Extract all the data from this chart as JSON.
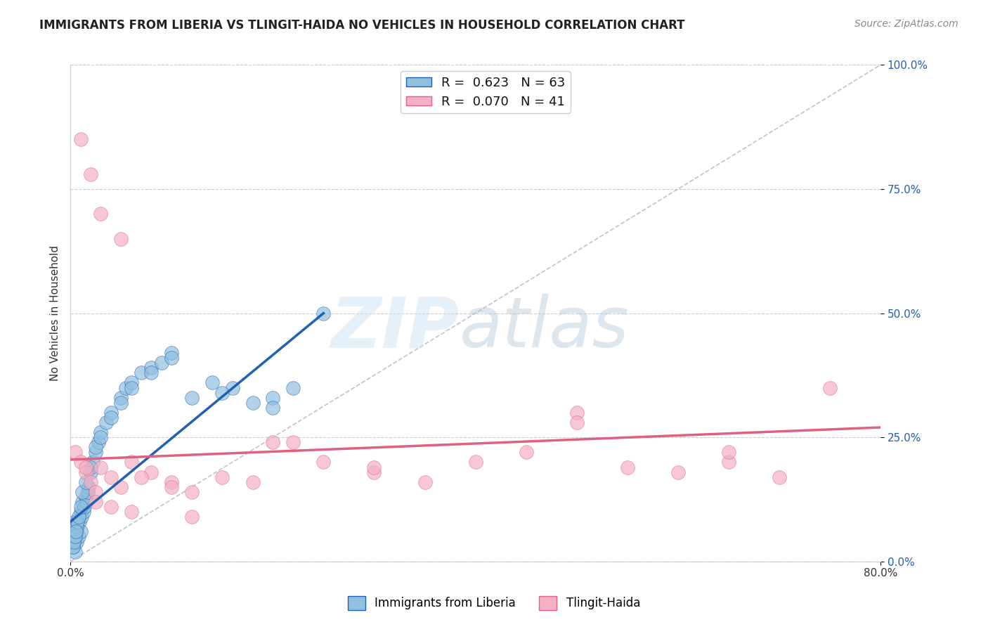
{
  "title": "IMMIGRANTS FROM LIBERIA VS TLINGIT-HAIDA NO VEHICLES IN HOUSEHOLD CORRELATION CHART",
  "source": "Source: ZipAtlas.com",
  "ylabel": "No Vehicles in Household",
  "xlim": [
    0.0,
    80.0
  ],
  "ylim": [
    0.0,
    100.0
  ],
  "yticks": [
    0.0,
    25.0,
    50.0,
    75.0,
    100.0
  ],
  "xticks": [
    0.0,
    80.0
  ],
  "legend_labels": [
    "Immigrants from Liberia",
    "Tlingit-Haida"
  ],
  "r_values": [
    0.623,
    0.07
  ],
  "n_values": [
    63,
    41
  ],
  "blue_color": "#90bfe0",
  "pink_color": "#f4b0c5",
  "blue_line_color": "#2060b0",
  "pink_line_color": "#e06080",
  "blue_scatter_x": [
    0.2,
    0.3,
    0.4,
    0.5,
    0.5,
    0.6,
    0.6,
    0.7,
    0.8,
    0.9,
    1.0,
    1.0,
    1.1,
    1.2,
    1.3,
    1.4,
    1.5,
    1.6,
    1.7,
    1.8,
    2.0,
    2.2,
    2.5,
    2.8,
    3.0,
    3.5,
    4.0,
    5.0,
    5.5,
    6.0,
    7.0,
    8.0,
    9.0,
    10.0,
    12.0,
    14.0,
    16.0,
    18.0,
    20.0,
    22.0,
    25.0,
    0.3,
    0.4,
    0.5,
    0.6,
    0.7,
    0.8,
    1.0,
    1.2,
    1.5,
    2.0,
    2.5,
    3.0,
    4.0,
    5.0,
    6.0,
    8.0,
    10.0,
    15.0,
    20.0,
    0.35,
    0.45,
    0.55
  ],
  "blue_scatter_y": [
    5.0,
    3.0,
    4.0,
    8.0,
    2.0,
    6.0,
    4.0,
    7.0,
    5.0,
    8.0,
    10.0,
    6.0,
    9.0,
    12.0,
    10.0,
    11.0,
    13.0,
    12.0,
    14.0,
    15.0,
    18.0,
    20.0,
    22.0,
    24.0,
    26.0,
    28.0,
    30.0,
    33.0,
    35.0,
    36.0,
    38.0,
    39.0,
    40.0,
    42.0,
    33.0,
    36.0,
    35.0,
    32.0,
    33.0,
    35.0,
    50.0,
    3.0,
    5.0,
    6.0,
    7.0,
    8.0,
    9.0,
    11.0,
    14.0,
    16.0,
    19.0,
    23.0,
    25.0,
    29.0,
    32.0,
    35.0,
    38.0,
    41.0,
    34.0,
    31.0,
    4.0,
    5.0,
    6.0
  ],
  "pink_scatter_x": [
    0.5,
    1.0,
    1.5,
    2.0,
    2.5,
    3.0,
    4.0,
    5.0,
    6.0,
    8.0,
    10.0,
    12.0,
    15.0,
    18.0,
    22.0,
    25.0,
    30.0,
    35.0,
    40.0,
    45.0,
    50.0,
    55.0,
    60.0,
    65.0,
    70.0,
    1.0,
    2.0,
    3.0,
    5.0,
    7.0,
    10.0,
    20.0,
    30.0,
    50.0,
    65.0,
    1.5,
    2.5,
    4.0,
    6.0,
    12.0,
    75.0
  ],
  "pink_scatter_y": [
    22.0,
    20.0,
    18.0,
    16.0,
    14.0,
    19.0,
    17.0,
    15.0,
    20.0,
    18.0,
    16.0,
    14.0,
    17.0,
    16.0,
    24.0,
    20.0,
    18.0,
    16.0,
    20.0,
    22.0,
    30.0,
    19.0,
    18.0,
    20.0,
    17.0,
    85.0,
    78.0,
    70.0,
    65.0,
    17.0,
    15.0,
    24.0,
    19.0,
    28.0,
    22.0,
    19.0,
    12.0,
    11.0,
    10.0,
    9.0,
    35.0
  ],
  "blue_line_x0": 0.0,
  "blue_line_y0": 8.0,
  "blue_line_x1": 25.0,
  "blue_line_y1": 50.0,
  "pink_line_x0": 0.0,
  "pink_line_y0": 20.5,
  "pink_line_x1": 80.0,
  "pink_line_y1": 27.0
}
